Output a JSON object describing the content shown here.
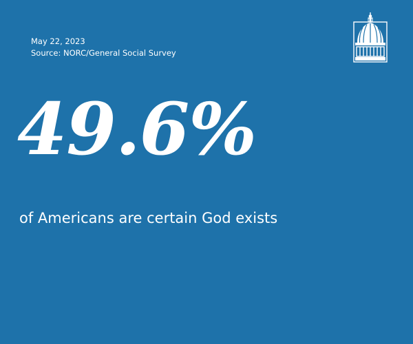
{
  "meta": {
    "date": "May 22, 2023",
    "source": "Source: NORC/General Social Survey"
  },
  "stat": {
    "value": "49.6%",
    "caption": "of Americans are certain God exists"
  },
  "logo": {
    "icon": "capitol-dome-icon"
  },
  "colors": {
    "background": "#1e72aa",
    "text": "#ffffff"
  }
}
